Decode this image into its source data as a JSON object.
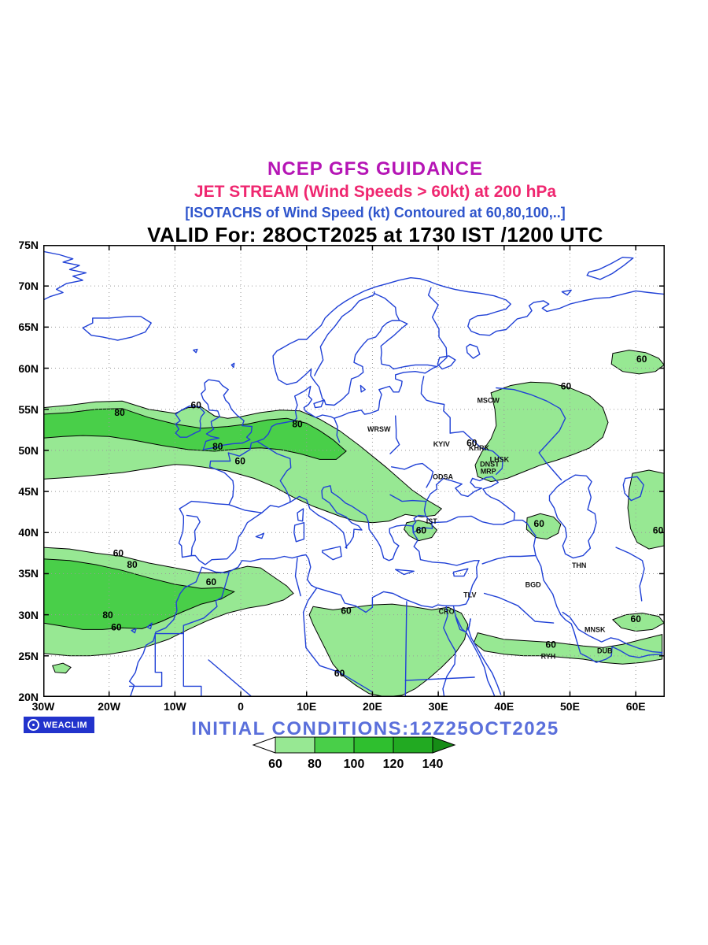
{
  "titles": {
    "line1": "NCEP GFS GUIDANCE",
    "line2": "JET STREAM (Wind Speeds > 60kt) at 200 hPa",
    "line3": "[ISOTACHS of Wind Speed (kt) Contoured at 60,80,100,..]",
    "line4": "VALID For: 28OCT2025 at 1730 IST /1200 UTC"
  },
  "footer": {
    "logo_text": "WEACLIM",
    "initial_conditions": "INITIAL CONDITIONS:12Z25OCT2025"
  },
  "map": {
    "lon_min": -30,
    "lon_max": 64.4,
    "lat_min": 20,
    "lat_max": 75
  },
  "axes": {
    "lat": [
      {
        "label": "75N",
        "value": 75
      },
      {
        "label": "70N",
        "value": 70
      },
      {
        "label": "65N",
        "value": 65
      },
      {
        "label": "60N",
        "value": 60
      },
      {
        "label": "55N",
        "value": 55
      },
      {
        "label": "50N",
        "value": 50
      },
      {
        "label": "45N",
        "value": 45
      },
      {
        "label": "40N",
        "value": 40
      },
      {
        "label": "35N",
        "value": 35
      },
      {
        "label": "30N",
        "value": 30
      },
      {
        "label": "25N",
        "value": 25
      },
      {
        "label": "20N",
        "value": 20
      }
    ],
    "lon": [
      {
        "label": "30W",
        "value": -30
      },
      {
        "label": "20W",
        "value": -20
      },
      {
        "label": "10W",
        "value": -10
      },
      {
        "label": "0",
        "value": 0
      },
      {
        "label": "10E",
        "value": 10
      },
      {
        "label": "20E",
        "value": 20
      },
      {
        "label": "30E",
        "value": 30
      },
      {
        "label": "40E",
        "value": 40
      },
      {
        "label": "50E",
        "value": 50
      },
      {
        "label": "60E",
        "value": 60
      }
    ]
  },
  "cities": [
    {
      "name": "MSCW",
      "lon": 37.6,
      "lat": 55.8
    },
    {
      "name": "WRSW",
      "lon": 21.0,
      "lat": 52.3
    },
    {
      "name": "KYIV",
      "lon": 30.5,
      "lat": 50.45
    },
    {
      "name": "KHRK",
      "lon": 36.2,
      "lat": 50.0
    },
    {
      "name": "LHSK",
      "lon": 39.3,
      "lat": 48.6
    },
    {
      "name": "DNST",
      "lon": 37.8,
      "lat": 48.05
    },
    {
      "name": "MRP",
      "lon": 37.6,
      "lat": 47.15
    },
    {
      "name": "ODSA",
      "lon": 30.7,
      "lat": 46.5
    },
    {
      "name": "IST",
      "lon": 29.0,
      "lat": 41.1
    },
    {
      "name": "THN",
      "lon": 51.4,
      "lat": 35.7
    },
    {
      "name": "BGD",
      "lon": 44.4,
      "lat": 33.35
    },
    {
      "name": "TLV",
      "lon": 34.8,
      "lat": 32.1
    },
    {
      "name": "CRO",
      "lon": 31.25,
      "lat": 30.1
    },
    {
      "name": "MNSK",
      "lon": 53.8,
      "lat": 27.9
    },
    {
      "name": "DUB",
      "lon": 55.3,
      "lat": 25.3
    },
    {
      "name": "RYH",
      "lon": 46.7,
      "lat": 24.65
    }
  ],
  "contour_labels": [
    {
      "text": "80",
      "lon": -18.4,
      "lat": 54.2
    },
    {
      "text": "60",
      "lon": -6.8,
      "lat": 55.1
    },
    {
      "text": "80",
      "lon": 8.6,
      "lat": 52.8
    },
    {
      "text": "80",
      "lon": -3.5,
      "lat": 50.1
    },
    {
      "text": "60",
      "lon": -0.1,
      "lat": 48.3
    },
    {
      "text": "60",
      "lon": 35.1,
      "lat": 50.5
    },
    {
      "text": "60",
      "lon": 49.4,
      "lat": 57.4
    },
    {
      "text": "60",
      "lon": 60.9,
      "lat": 60.7
    },
    {
      "text": "60",
      "lon": 63.4,
      "lat": 39.9
    },
    {
      "text": "60",
      "lon": 45.3,
      "lat": 40.7
    },
    {
      "text": "60",
      "lon": 27.4,
      "lat": 39.9
    },
    {
      "text": "60",
      "lon": -18.6,
      "lat": 37.1
    },
    {
      "text": "80",
      "lon": -16.5,
      "lat": 35.7
    },
    {
      "text": "60",
      "lon": -4.5,
      "lat": 33.6
    },
    {
      "text": "80",
      "lon": -20.2,
      "lat": 29.6
    },
    {
      "text": "60",
      "lon": -18.9,
      "lat": 28.1
    },
    {
      "text": "60",
      "lon": 16.0,
      "lat": 30.1
    },
    {
      "text": "60",
      "lon": 15.0,
      "lat": 22.5
    },
    {
      "text": "60",
      "lon": 47.1,
      "lat": 26.0
    },
    {
      "text": "60",
      "lon": 60.0,
      "lat": 29.1
    }
  ],
  "colorbar": {
    "tick_labels": [
      "60",
      "80",
      "100",
      "120",
      "140"
    ],
    "segment_colors": [
      "#97e893",
      "#49cf49",
      "#2fbf2f",
      "#22aa22"
    ],
    "left_arrow_color": "#ffffff",
    "right_arrow_color": "#168c16"
  },
  "colors": {
    "coast": "#2041d6",
    "grid": "#9a9a9a",
    "fill60": "#97e893",
    "fill80": "#49cf49",
    "contour_line": "#000000",
    "title1": "#b515b5",
    "title2": "#ef2770",
    "title3": "#2f55cc",
    "initial": "#5a6fdb",
    "logo_bg": "#2233cc"
  },
  "chart_data": {
    "type": "heatmap",
    "title": "NCEP GFS GUIDANCE",
    "subtitle": "JET STREAM (Wind Speeds > 60kt) at 200 hPa",
    "note": "[ISOTACHS of Wind Speed (kt) Contoured at 60,80,100,..]",
    "valid": "28OCT2025 at 1730 IST /1200 UTC",
    "initial_conditions": "12Z25OCT2025",
    "variable": "wind speed isotachs",
    "units": "kt",
    "pressure_level": "200 hPa",
    "fill_threshold_kt": 60,
    "contour_levels": [
      60,
      80,
      100,
      120,
      140
    ],
    "x_axis": {
      "type": "longitude",
      "range_deg": [
        -30,
        64
      ],
      "ticks": [
        "30W",
        "20W",
        "10W",
        "0",
        "10E",
        "20E",
        "30E",
        "40E",
        "50E",
        "60E"
      ]
    },
    "y_axis": {
      "type": "latitude",
      "range_deg": [
        20,
        75
      ],
      "ticks": [
        "20N",
        "25N",
        "30N",
        "35N",
        "40N",
        "45N",
        "50N",
        "55N",
        "60N",
        "65N",
        "70N",
        "75N"
      ]
    },
    "legend": {
      "position": "bottom",
      "labels": [
        "60",
        "80",
        "100",
        "120",
        "140"
      ]
    },
    "grid": true,
    "jet_features": [
      {
        "region": "North Atlantic into central Europe, ~46-56N, 30W-30E",
        "max_labeled_kt": 80
      },
      {
        "region": "Northwest Africa / subtropical Atlantic, ~25-38N, 30W-8E",
        "max_labeled_kt": 80
      },
      {
        "region": "Libya-Egypt, ~20-31N, 11E-35E",
        "max_labeled_kt": 60
      },
      {
        "region": "Western Russia near Volga, ~46-58N, 36-56E",
        "max_labeled_kt": 60
      },
      {
        "region": "Urals, ~59-62N, 56-64E",
        "max_labeled_kt": 60
      },
      {
        "region": "East of Caspian, ~38-47N, 59-64E",
        "max_labeled_kt": 60
      },
      {
        "region": "Caucasus/Azerbaijan, ~39-42N, 43-49E",
        "max_labeled_kt": 60
      },
      {
        "region": "Marmara/Aegean, ~39-41N, 25-30E",
        "max_labeled_kt": 60
      },
      {
        "region": "Saudi Arabia/Persian Gulf, ~24-30N, 35-64E",
        "max_labeled_kt": 60
      }
    ]
  }
}
